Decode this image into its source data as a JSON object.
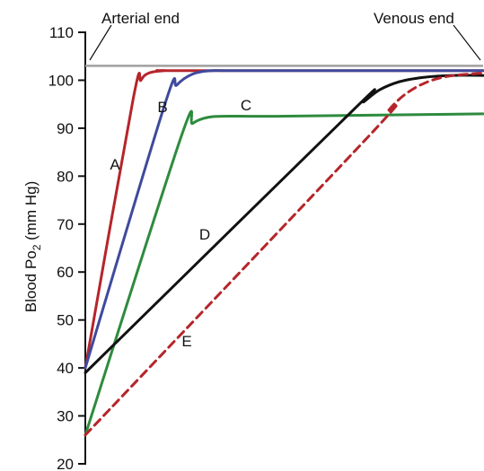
{
  "chart_data": {
    "type": "line",
    "ylabel": {
      "main": "Blood Po",
      "subscript": "2",
      "suffix": " (mm Hg)"
    },
    "ylim": [
      20,
      110
    ],
    "yticks": [
      20,
      30,
      40,
      50,
      60,
      70,
      80,
      90,
      100,
      110
    ],
    "xlim": [
      0,
      100
    ],
    "grid": false,
    "legend": "none",
    "annotations": {
      "arterial_end": "Arterial end",
      "venous_end": "Venous end"
    },
    "reference_line": {
      "y": 103,
      "color": "#a0a0a0"
    },
    "series": [
      {
        "name": "A",
        "color": "#b5252a",
        "style": "solid",
        "x": [
          0,
          12,
          14,
          16,
          20,
          25,
          100
        ],
        "y": [
          40,
          96,
          100,
          101.5,
          102,
          102,
          102
        ]
      },
      {
        "name": "B",
        "color": "#3f4a9c",
        "style": "solid",
        "x": [
          0,
          20,
          23,
          27,
          32,
          40,
          100
        ],
        "y": [
          40,
          95,
          99,
          101.3,
          102,
          102,
          102
        ]
      },
      {
        "name": "C",
        "color": "#2e8b3e",
        "style": "solid",
        "x": [
          0,
          24,
          27,
          31,
          36,
          50,
          100
        ],
        "y": [
          26,
          88,
          91,
          92.3,
          92.5,
          92.5,
          93
        ]
      },
      {
        "name": "D",
        "color": "#111111",
        "style": "solid",
        "x": [
          0,
          67,
          70,
          74,
          79,
          85,
          92,
          100
        ],
        "y": [
          39,
          93.5,
          95.5,
          98,
          99.7,
          100.6,
          101,
          101
        ]
      },
      {
        "name": "E",
        "color": "#b5252a",
        "style": "dashed",
        "x": [
          0,
          72,
          76,
          80,
          85,
          91,
          100
        ],
        "y": [
          26,
          89,
          93.5,
          96.8,
          99.3,
          100.8,
          101.5
        ]
      }
    ]
  }
}
